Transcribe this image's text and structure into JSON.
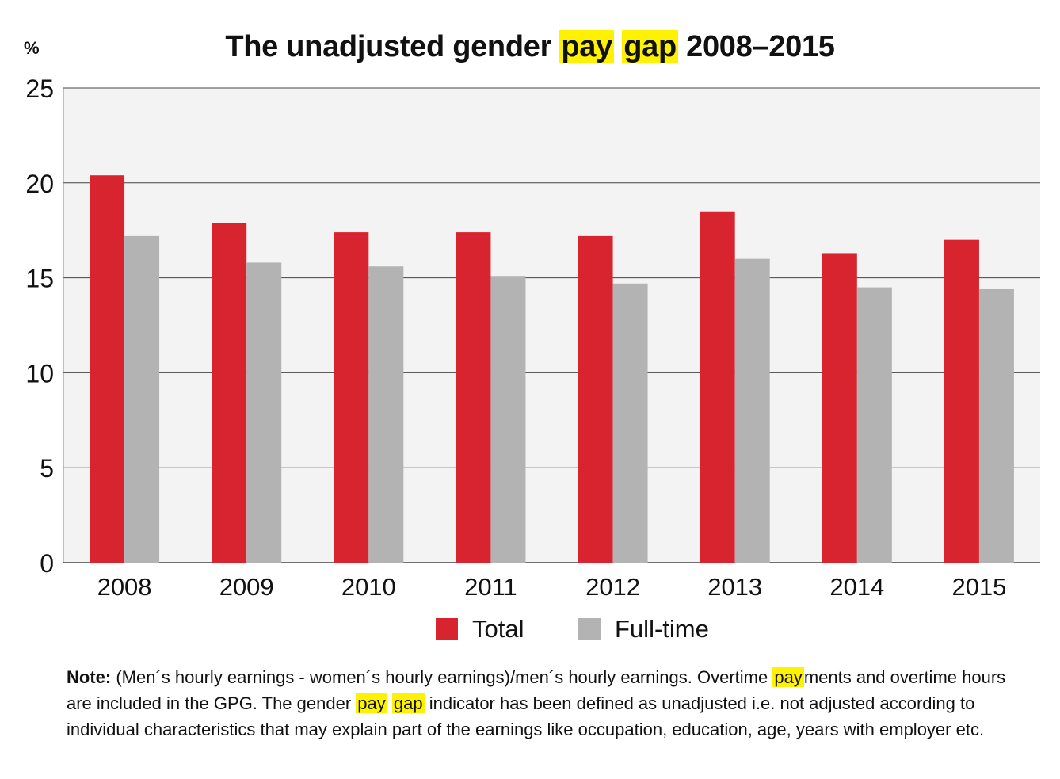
{
  "colors": {
    "total": "#d7242f",
    "fulltime": "#b3b3b3",
    "highlight": "#fff200",
    "plot_bg": "#f3f3f3",
    "grid": "#444444"
  },
  "title": {
    "part1": "The unadjusted gender ",
    "hl1": "pay",
    "space": " ",
    "hl2": "gap",
    "part2": " 2008–2015"
  },
  "y_unit": "%",
  "legend": {
    "total": "Total",
    "fulltime": "Full-time"
  },
  "note": {
    "label": "Note:",
    "t1": " (Men´s hourly earnings - women´s hourly earnings)/men´s hourly earnings. Overtime ",
    "hl1": "pay",
    "t2": "ments and overtime hours are included in the GPG. The gender ",
    "hl2": "pay",
    "t3": " ",
    "hl3": "gap",
    "t4": " indicator has been defined as unadjusted i.e. not adjusted according to individual characteristics that may explain part of the earnings like occupation, education, age, years with employer etc."
  },
  "chart_data": {
    "type": "bar",
    "title": "The unadjusted gender pay gap 2008–2015",
    "xlabel": "",
    "ylabel": "%",
    "ylim": [
      0,
      25
    ],
    "yticks": [
      0,
      5,
      10,
      15,
      20,
      25
    ],
    "grid": true,
    "legend_position": "bottom",
    "categories": [
      "2008",
      "2009",
      "2010",
      "2011",
      "2012",
      "2013",
      "2014",
      "2015"
    ],
    "series": [
      {
        "name": "Total",
        "values": [
          20.4,
          17.9,
          17.4,
          17.4,
          17.2,
          18.5,
          16.3,
          17.0
        ]
      },
      {
        "name": "Full-time",
        "values": [
          17.2,
          15.8,
          15.6,
          15.1,
          14.7,
          16.0,
          14.5,
          14.4
        ]
      }
    ]
  }
}
